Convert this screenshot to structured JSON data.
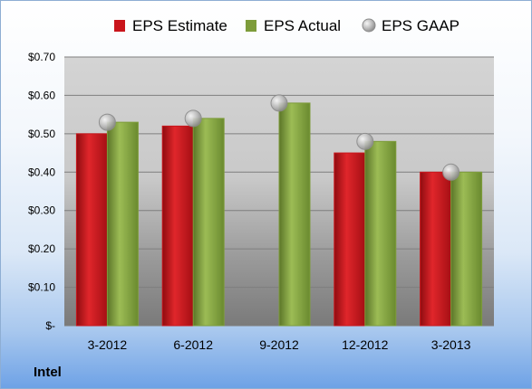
{
  "company": "Intel",
  "colors": {
    "estimate": "#c9151b",
    "actual": "#7d9c3a",
    "gaap": "#b0b0b0"
  },
  "chart_data": {
    "type": "bar",
    "categories": [
      "3-2012",
      "6-2012",
      "9-2012",
      "12-2012",
      "3-2013"
    ],
    "series": [
      {
        "name": "EPS Estimate",
        "kind": "bar",
        "values": [
          0.5,
          0.52,
          null,
          0.45,
          0.4
        ]
      },
      {
        "name": "EPS Actual",
        "kind": "bar",
        "values": [
          0.53,
          0.54,
          0.58,
          0.48,
          0.4
        ]
      },
      {
        "name": "EPS GAAP",
        "kind": "marker",
        "values": [
          0.53,
          0.54,
          0.58,
          0.48,
          0.4
        ]
      }
    ],
    "ylim": [
      0,
      0.7
    ],
    "yticks": [
      0,
      0.1,
      0.2,
      0.3,
      0.4,
      0.5,
      0.6,
      0.7
    ],
    "ytick_labels": [
      "$-",
      "$0.10",
      "$0.20",
      "$0.30",
      "$0.40",
      "$0.50",
      "$0.60",
      "$0.70"
    ],
    "grid": true,
    "legend": "top"
  }
}
